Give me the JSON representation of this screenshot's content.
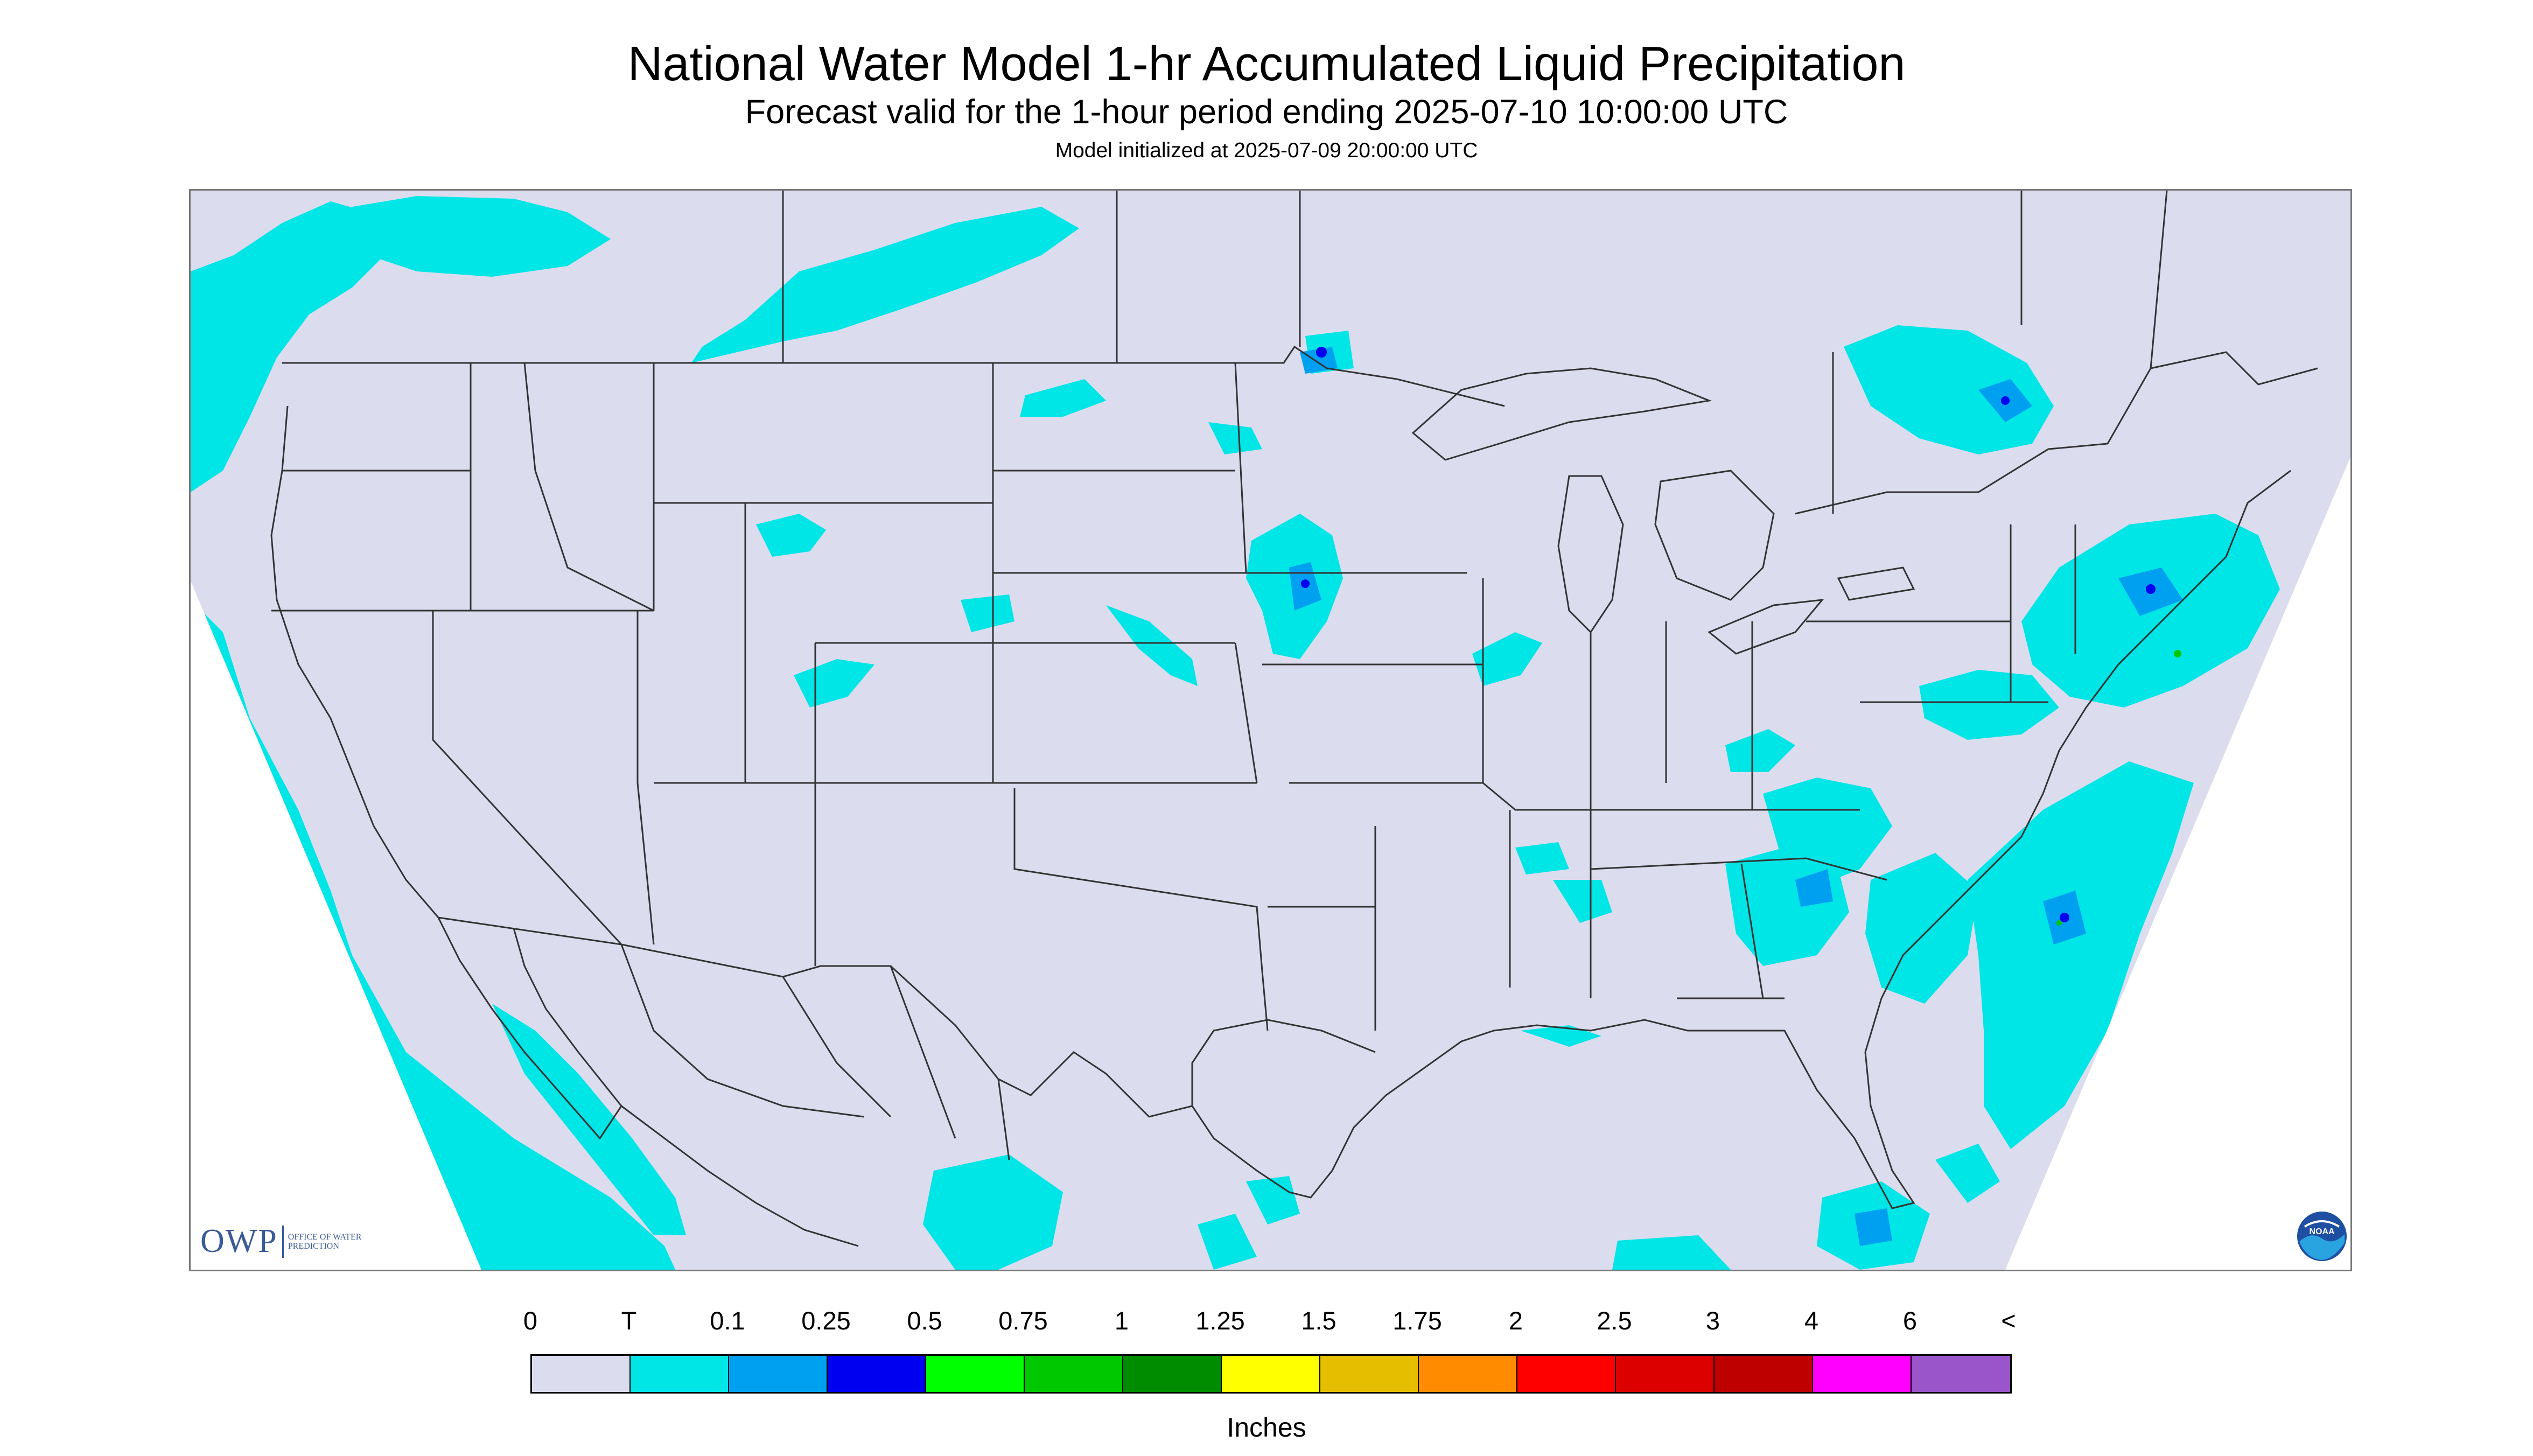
{
  "header": {
    "title": "National Water Model 1-hr Accumulated Liquid Precipitation",
    "subtitle": "Forecast valid for the 1-hour period ending 2025-07-10 10:00:00 UTC",
    "init_line": "Model initialized at 2025-07-09 20:00:00 UTC"
  },
  "logos": {
    "owp_text": "OWP",
    "owp_small": "OFFICE OF WATER PREDICTION",
    "noaa_text": "NOAA"
  },
  "legend": {
    "labels": [
      "0",
      "T",
      "0.1",
      "0.25",
      "0.5",
      "0.75",
      "1",
      "1.25",
      "1.5",
      "1.75",
      "2",
      "2.5",
      "3",
      "4",
      "6",
      "<"
    ],
    "colors": [
      "#dcdcef",
      "#00e5e5",
      "#00a0f0",
      "#0000f0",
      "#00ff00",
      "#00c800",
      "#008c00",
      "#ffff00",
      "#e6be00",
      "#ff8c00",
      "#ff0000",
      "#dc0000",
      "#be0000",
      "#ff00ff",
      "#9955c9"
    ],
    "units": "Inches"
  },
  "map_colors": {
    "background": "#dcdcef",
    "trace": "#00e5e5",
    "light": "#00a0f0",
    "moderate": "#0000f0",
    "heavy": "#00c800",
    "out_of_domain": "#ffffff",
    "borders": "#333333"
  }
}
